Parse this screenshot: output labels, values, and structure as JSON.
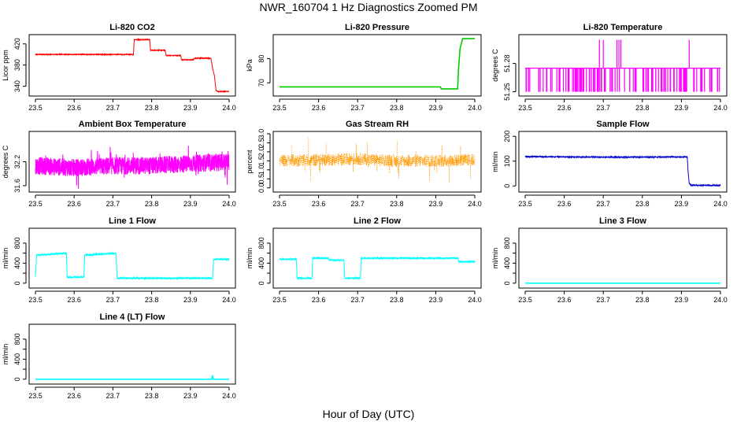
{
  "figure": {
    "title": "NWR_160704  1 Hz Diagnostics Zoomed PM",
    "xlabel": "Hour of Day (UTC)"
  },
  "chart_data": [
    {
      "type": "line",
      "title": "Li-820 CO2",
      "ylabel": "Licor ppm",
      "color": "#ff0000",
      "xlim": [
        23.5,
        24.0
      ],
      "ylim": [
        326,
        433
      ],
      "xticks": [
        "23.5",
        "23.6",
        "23.7",
        "23.8",
        "23.9",
        "24.0"
      ],
      "yticks": [
        340,
        380,
        420
      ],
      "ytick_labels": [
        "340",
        "380",
        "420"
      ],
      "series": [
        {
          "x": [
            23.5,
            23.753,
            23.755,
            23.795,
            23.797,
            23.835,
            23.837,
            23.875,
            23.877,
            23.908,
            23.91,
            23.953,
            23.957,
            23.962,
            23.966,
            23.972,
            24.0
          ],
          "y": [
            400,
            400,
            428,
            428,
            408,
            408,
            398,
            398,
            390,
            390,
            393,
            393,
            375,
            360,
            332,
            330,
            330
          ]
        }
      ]
    },
    {
      "type": "line",
      "title": "Li-820 Pressure",
      "ylabel": "kPa",
      "color": "#00cc00",
      "xlim": [
        23.5,
        24.0
      ],
      "ylim": [
        65.5,
        89
      ],
      "xticks": [
        "23.5",
        "23.6",
        "23.7",
        "23.8",
        "23.9",
        "24.0"
      ],
      "yticks": [
        70,
        80
      ],
      "ytick_labels": [
        "70",
        "80"
      ],
      "series": [
        {
          "x": [
            23.5,
            23.912,
            23.914,
            23.956,
            23.958,
            23.962,
            23.966,
            23.969,
            24.0
          ],
          "y": [
            68.3,
            68.3,
            67.5,
            67.5,
            75,
            84,
            86.5,
            88.3,
            88.3
          ]
        }
      ]
    },
    {
      "type": "line",
      "title": "Li-820 Temperature",
      "ylabel": "degrees C",
      "color": "#ff00ff",
      "xlim": [
        23.5,
        24.0
      ],
      "ylim": [
        51.248,
        51.308
      ],
      "xticks": [
        "23.5",
        "23.6",
        "23.7",
        "23.8",
        "23.9",
        "24.0"
      ],
      "yticks": [
        51.25,
        51.28
      ],
      "ytick_labels": [
        "51.25",
        "51.28"
      ],
      "series": [
        {
          "x": [
            23.5,
            23.55,
            23.6,
            23.65,
            23.69,
            23.7,
            23.74,
            23.8,
            23.85,
            23.92,
            23.95,
            24.0
          ],
          "y": [
            51.275,
            51.25,
            51.275,
            51.25,
            51.305,
            51.275,
            51.305,
            51.25,
            51.275,
            51.305,
            51.25,
            51.275
          ]
        }
      ]
    },
    {
      "type": "line",
      "title": "Ambient Box Temperature",
      "ylabel": "degrees C",
      "color": "#ff00ff",
      "xlim": [
        23.5,
        24.0
      ],
      "ylim": [
        31.5,
        32.9
      ],
      "xticks": [
        "23.5",
        "23.6",
        "23.7",
        "23.8",
        "23.9",
        "24.0"
      ],
      "yticks": [
        31.6,
        32.2
      ],
      "ytick_labels": [
        "31.6",
        "32.2"
      ],
      "series": [
        {
          "x": [
            23.5,
            23.6,
            23.7,
            23.8,
            23.9,
            24.0
          ],
          "y": [
            32.1,
            32.05,
            32.1,
            32.1,
            32.15,
            32.2
          ]
        }
      ]
    },
    {
      "type": "line",
      "title": "Gas Stream RH",
      "ylabel": "percent",
      "color": "#ff9900",
      "xlim": [
        23.5,
        24.0
      ],
      "ylim": [
        -0.1,
        3.0
      ],
      "xticks": [
        "23.5",
        "23.6",
        "23.7",
        "23.8",
        "23.9",
        "24.0"
      ],
      "yticks": [
        0.0,
        0.5,
        1.0,
        1.5,
        2.0,
        2.5,
        3.0
      ],
      "ytick_labels": [
        "0.0",
        "0.5",
        "1.0",
        "1.5",
        "2.0",
        "2.5",
        "3.0"
      ],
      "series": [
        {
          "x": [
            23.5,
            23.6,
            23.7,
            23.8,
            23.9,
            24.0
          ],
          "y": [
            1.5,
            1.55,
            1.6,
            1.5,
            1.5,
            1.55
          ]
        }
      ]
    },
    {
      "type": "line",
      "title": "Sample Flow",
      "ylabel": "ml/min",
      "color": "#0000cc",
      "xlim": [
        23.5,
        24.0
      ],
      "ylim": [
        -15,
        210
      ],
      "xticks": [
        "23.5",
        "23.6",
        "23.7",
        "23.8",
        "23.9",
        "24.0"
      ],
      "yticks": [
        0,
        100,
        200
      ],
      "ytick_labels": [
        "0",
        "100",
        "200"
      ],
      "series": [
        {
          "x": [
            23.5,
            23.6,
            23.7,
            23.8,
            23.915,
            23.917,
            23.92,
            23.925,
            24.0
          ],
          "y": [
            118,
            117,
            116,
            116,
            117,
            60,
            10,
            3,
            2
          ]
        }
      ]
    },
    {
      "type": "line",
      "title": "Line 1 Flow",
      "ylabel": "ml/min",
      "color": "#00ffff",
      "xlim": [
        23.5,
        24.0
      ],
      "ylim": [
        -50,
        1050
      ],
      "xticks": [
        "23.5",
        "23.6",
        "23.7",
        "23.8",
        "23.9",
        "24.0"
      ],
      "yticks": [
        0,
        200,
        400,
        600,
        800
      ],
      "ytick_labels": [
        "0",
        "400",
        "800"
      ],
      "series": [
        {
          "x": [
            23.5,
            23.503,
            23.58,
            23.582,
            23.625,
            23.627,
            23.708,
            23.711,
            23.957,
            23.96,
            24.0
          ],
          "y": [
            130,
            560,
            600,
            120,
            120,
            560,
            600,
            100,
            100,
            480,
            480
          ]
        }
      ]
    },
    {
      "type": "line",
      "title": "Line 2 Flow",
      "ylabel": "ml/min",
      "color": "#00ffff",
      "xlim": [
        23.5,
        24.0
      ],
      "ylim": [
        -50,
        1050
      ],
      "xticks": [
        "23.5",
        "23.6",
        "23.7",
        "23.8",
        "23.9",
        "24.0"
      ],
      "yticks": [
        0,
        200,
        400,
        600,
        800
      ],
      "ytick_labels": [
        "0",
        "400",
        "800"
      ],
      "series": [
        {
          "x": [
            23.5,
            23.543,
            23.545,
            23.583,
            23.585,
            23.625,
            23.627,
            23.665,
            23.667,
            23.707,
            23.709,
            23.957,
            23.959,
            24.0
          ],
          "y": [
            480,
            480,
            100,
            100,
            500,
            500,
            460,
            460,
            100,
            100,
            500,
            500,
            430,
            430
          ]
        }
      ]
    },
    {
      "type": "line",
      "title": "Line 3 Flow",
      "ylabel": "ml/min",
      "color": "#00ffff",
      "xlim": [
        23.5,
        24.0
      ],
      "ylim": [
        -50,
        1050
      ],
      "xticks": [
        "23.5",
        "23.6",
        "23.7",
        "23.8",
        "23.9",
        "24.0"
      ],
      "yticks": [
        0,
        200,
        400,
        600,
        800
      ],
      "ytick_labels": [
        "0",
        "400",
        "800"
      ],
      "series": [
        {
          "x": [
            23.5,
            24.0
          ],
          "y": [
            0,
            0
          ]
        }
      ]
    },
    {
      "type": "line",
      "title": "Line 4 (LT) Flow",
      "ylabel": "ml/min",
      "color": "#00ffff",
      "xlim": [
        23.5,
        24.0
      ],
      "ylim": [
        -50,
        1050
      ],
      "xticks": [
        "23.5",
        "23.6",
        "23.7",
        "23.8",
        "23.9",
        "24.0"
      ],
      "yticks": [
        0,
        200,
        400,
        600,
        800
      ],
      "ytick_labels": [
        "0",
        "400",
        "800"
      ],
      "series": [
        {
          "x": [
            23.5,
            23.955,
            23.957,
            23.959,
            24.0
          ],
          "y": [
            0,
            0,
            80,
            0,
            0
          ]
        }
      ]
    }
  ]
}
